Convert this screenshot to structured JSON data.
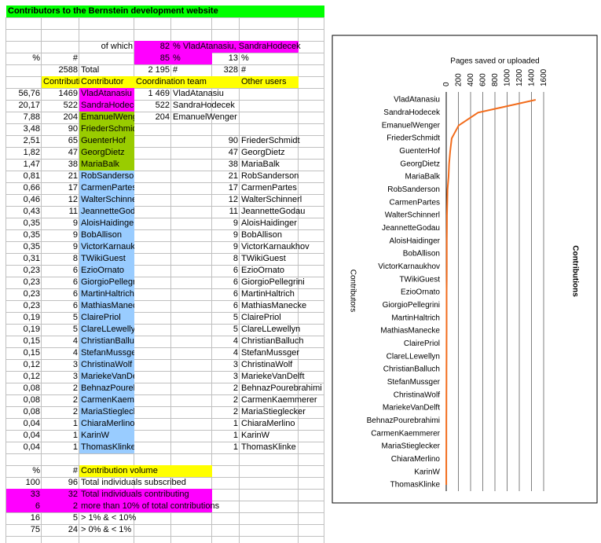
{
  "sheet": {
    "title": "Contributors to the Bernstein development website",
    "summary": {
      "of_which": "of which",
      "pct_main": 82,
      "pct_main_text": "% VladAtanasiu, SandraHodecek",
      "pct_col": "%",
      "count_col": "#",
      "pct_coord": 85,
      "pct_coord_unit": "%",
      "pct_other": 13,
      "pct_other_unit": "%",
      "total": 2588,
      "total_label": "Total",
      "coord_total": "2 195",
      "coord_total_unit": "#",
      "other_total": 328,
      "other_total_unit": "#"
    },
    "header": [
      "Contributions",
      "Contributor",
      "Coordination team",
      "Other users"
    ],
    "contributors": [
      {
        "pct": "56,76",
        "count": 1469,
        "name": "VladAtanasiu"
      },
      {
        "pct": "20,17",
        "count": 522,
        "name": "SandraHodecek"
      },
      {
        "pct": "7,88",
        "count": 204,
        "name": "EmanuelWenger"
      },
      {
        "pct": "3,48",
        "count": 90,
        "name": "FriederSchmidt"
      },
      {
        "pct": "2,51",
        "count": 65,
        "name": "GuenterHof"
      },
      {
        "pct": "1,82",
        "count": 47,
        "name": "GeorgDietz"
      },
      {
        "pct": "1,47",
        "count": 38,
        "name": "MariaBalk"
      },
      {
        "pct": "0,81",
        "count": 21,
        "name": "RobSanderson"
      },
      {
        "pct": "0,66",
        "count": 17,
        "name": "CarmenPartes"
      },
      {
        "pct": "0,46",
        "count": 12,
        "name": "WalterSchinnerl"
      },
      {
        "pct": "0,43",
        "count": 11,
        "name": "JeannetteGodau"
      },
      {
        "pct": "0,35",
        "count": 9,
        "name": "AloisHaidinger"
      },
      {
        "pct": "0,35",
        "count": 9,
        "name": "BobAllison"
      },
      {
        "pct": "0,35",
        "count": 9,
        "name": "VictorKarnaukhov"
      },
      {
        "pct": "0,31",
        "count": 8,
        "name": "TWikiGuest"
      },
      {
        "pct": "0,23",
        "count": 6,
        "name": "EzioOrnato"
      },
      {
        "pct": "0,23",
        "count": 6,
        "name": "GiorgioPellegrini"
      },
      {
        "pct": "0,23",
        "count": 6,
        "name": "MartinHaltrich"
      },
      {
        "pct": "0,23",
        "count": 6,
        "name": "MathiasManecke"
      },
      {
        "pct": "0,19",
        "count": 5,
        "name": "ClairePriol"
      },
      {
        "pct": "0,19",
        "count": 5,
        "name": "ClareLLewellyn"
      },
      {
        "pct": "0,15",
        "count": 4,
        "name": "ChristianBalluch"
      },
      {
        "pct": "0,15",
        "count": 4,
        "name": "StefanMussger"
      },
      {
        "pct": "0,12",
        "count": 3,
        "name": "ChristinaWolf"
      },
      {
        "pct": "0,12",
        "count": 3,
        "name": "MariekeVanDelft"
      },
      {
        "pct": "0,08",
        "count": 2,
        "name": "BehnazPourebrahimi"
      },
      {
        "pct": "0,08",
        "count": 2,
        "name": "CarmenKaemmerer"
      },
      {
        "pct": "0,08",
        "count": 2,
        "name": "MariaStieglecker"
      },
      {
        "pct": "0,04",
        "count": 1,
        "name": "ChiaraMerlino"
      },
      {
        "pct": "0,04",
        "count": 1,
        "name": "KarinW"
      },
      {
        "pct": "0,04",
        "count": 1,
        "name": "ThomasKlinke"
      }
    ],
    "coordination": [
      {
        "count": "1 469",
        "name": "VladAtanasiu"
      },
      {
        "count": 522,
        "name": "SandraHodecek"
      },
      {
        "count": 204,
        "name": "EmanuelWenger"
      }
    ],
    "other_users": [
      {
        "count": 90,
        "name": "FriederSchmidt"
      },
      {
        "count": 47,
        "name": "GeorgDietz"
      },
      {
        "count": 38,
        "name": "MariaBalk"
      },
      {
        "count": 21,
        "name": "RobSanderson"
      },
      {
        "count": 17,
        "name": "CarmenPartes"
      },
      {
        "count": 12,
        "name": "WalterSchinnerl"
      },
      {
        "count": 11,
        "name": "JeannetteGodau"
      },
      {
        "count": 9,
        "name": "AloisHaidinger"
      },
      {
        "count": 9,
        "name": "BobAllison"
      },
      {
        "count": 9,
        "name": "VictorKarnaukhov"
      },
      {
        "count": 8,
        "name": "TWikiGuest"
      },
      {
        "count": 6,
        "name": "EzioOrnato"
      },
      {
        "count": 6,
        "name": "GiorgioPellegrini"
      },
      {
        "count": 6,
        "name": "MartinHaltrich"
      },
      {
        "count": 6,
        "name": "MathiasManecke"
      },
      {
        "count": 5,
        "name": "ClairePriol"
      },
      {
        "count": 5,
        "name": "ClareLLewellyn"
      },
      {
        "count": 4,
        "name": "ChristianBalluch"
      },
      {
        "count": 4,
        "name": "StefanMussger"
      },
      {
        "count": 3,
        "name": "ChristinaWolf"
      },
      {
        "count": 3,
        "name": "MariekeVanDelft"
      },
      {
        "count": 2,
        "name": "BehnazPourebrahimi"
      },
      {
        "count": 2,
        "name": "CarmenKaemmerer"
      },
      {
        "count": 2,
        "name": "MariaStieglecker"
      },
      {
        "count": 1,
        "name": "ChiaraMerlino"
      },
      {
        "count": 1,
        "name": "KarinW"
      },
      {
        "count": 1,
        "name": "ThomasKlinke"
      }
    ],
    "footer": {
      "pct": "%",
      "count": "#",
      "label": "Contribution volume",
      "rows": [
        {
          "pct": 100,
          "count": 96,
          "label": "Total individuals subscribed"
        },
        {
          "pct": 33,
          "count": 32,
          "label": "Total individuals contributing"
        },
        {
          "pct": 6,
          "count": 2,
          "label": "more than 10% of total contributions"
        },
        {
          "pct": 16,
          "count": 5,
          "label": "> 1% & < 10%"
        },
        {
          "pct": 75,
          "count": 24,
          "label": "> 0% & < 1%"
        }
      ]
    }
  },
  "chart_data": {
    "type": "line",
    "title": "Pages saved or uploaded",
    "y_label": "Contributors",
    "categories": [
      "VladAtanasiu",
      "SandraHodecek",
      "EmanuelWenger",
      "FriederSchmidt",
      "GuenterHof",
      "GeorgDietz",
      "MariaBalk",
      "RobSanderson",
      "CarmenPartes",
      "WalterSchinnerl",
      "JeannetteGodau",
      "AloisHaidinger",
      "BobAllison",
      "VictorKarnaukhov",
      "TWikiGuest",
      "EzioOrnato",
      "GiorgioPellegrini",
      "MartinHaltrich",
      "MathiasManecke",
      "ClairePriol",
      "ClareLLewellyn",
      "ChristianBalluch",
      "StefanMussger",
      "ChristinaWolf",
      "MariekeVanDelft",
      "BehnazPourebrahimi",
      "CarmenKaemmerer",
      "MariaStieglecker",
      "ChiaraMerlino",
      "KarinW",
      "ThomasKlinke"
    ],
    "series": [
      {
        "name": "Contributions",
        "color": "#f26c1c",
        "values": [
          1469,
          522,
          204,
          90,
          65,
          47,
          38,
          21,
          17,
          12,
          11,
          9,
          9,
          9,
          8,
          6,
          6,
          6,
          6,
          5,
          5,
          4,
          4,
          3,
          3,
          2,
          2,
          2,
          1,
          1,
          1
        ]
      }
    ],
    "xlim": [
      0,
      1600
    ],
    "xticks": [
      0,
      200,
      400,
      600,
      800,
      1000,
      1200,
      1400,
      1600
    ],
    "grid": true,
    "legend": "right"
  }
}
